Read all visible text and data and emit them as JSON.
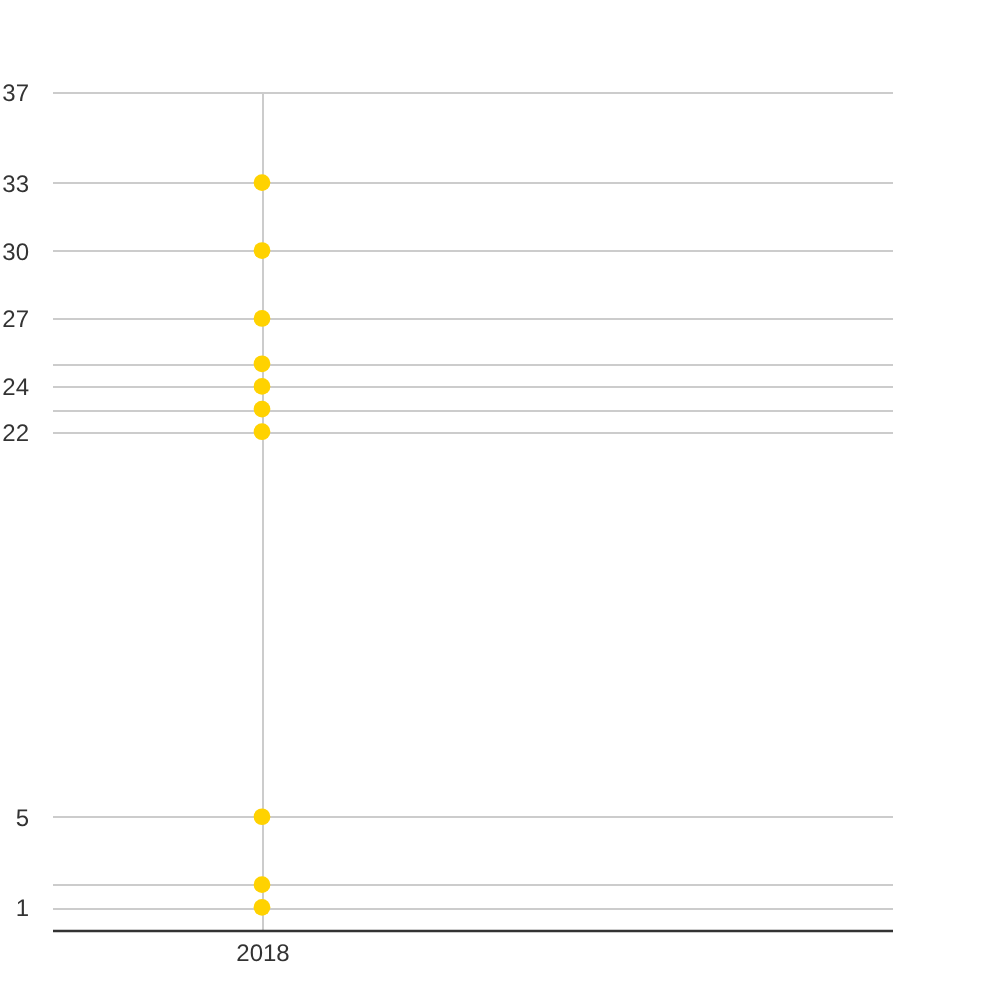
{
  "chart_data": {
    "type": "scatter",
    "categories": [
      "2018",
      null
    ],
    "series": [
      {
        "color": "#ffd200",
        "values": [
          33,
          null
        ]
      },
      {
        "color": "#ffd200",
        "values": [
          30,
          null
        ]
      },
      {
        "color": "#ffd200",
        "values": [
          27,
          null
        ]
      },
      {
        "color": "#ffd200",
        "values": [
          25,
          null
        ]
      },
      {
        "color": "#ffd200",
        "values": [
          24,
          null
        ]
      },
      {
        "color": "#ffd200",
        "values": [
          23,
          null
        ]
      },
      {
        "color": "#ffd200",
        "values": [
          22,
          null
        ]
      },
      {
        "color": "#ffd200",
        "values": [
          5,
          null
        ]
      },
      {
        "color": "#ffd200",
        "values": [
          2,
          null
        ]
      },
      {
        "color": "#ffd200",
        "values": [
          1,
          null
        ]
      }
    ],
    "ylim": [
      0,
      37
    ],
    "yticks": [
      1,
      {
        "value": 2,
        "label": null
      },
      5,
      22,
      {
        "value": 23,
        "label": null
      },
      24,
      {
        "value": 25,
        "label": null
      },
      27,
      30,
      33,
      37
    ],
    "grid": true,
    "marker": "circle"
  }
}
